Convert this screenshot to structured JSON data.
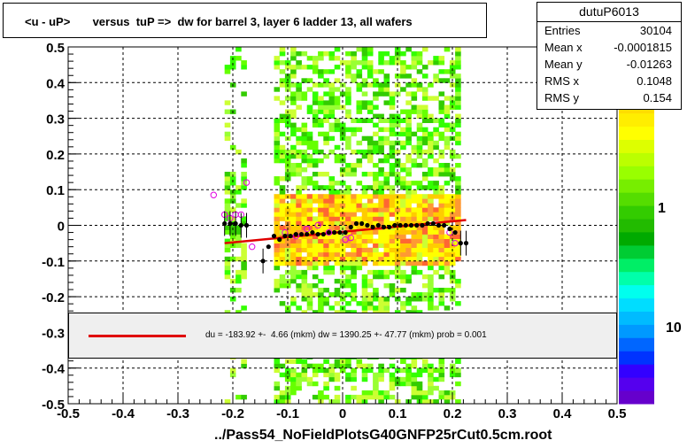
{
  "title": "<u - uP>       versus  tuP =>  dw for barrel 3, layer 6 ladder 13, all wafers",
  "x_axis_title": "../Pass54_NoFieldPlotsG40GNFP25rCut0.5cm.root",
  "stats": {
    "name": "dutuP6013",
    "rows": [
      {
        "label": "Entries",
        "value": "30104"
      },
      {
        "label": "Mean x",
        "value": "-0.0001815"
      },
      {
        "label": "Mean y",
        "value": "-0.01263"
      },
      {
        "label": "RMS x",
        "value": "0.1048"
      },
      {
        "label": "RMS y",
        "value": "0.154"
      }
    ]
  },
  "fit_text": "du = -183.92 +-  4.66 (mkm) dw = 1390.25 +- 47.77 (mkm) prob = 0.001",
  "palette_labels": [
    "10",
    "1",
    "10"
  ],
  "colors": {
    "fit": "#e00000",
    "profile": "#000000",
    "open_markers": "#e000e0"
  },
  "chart_data": {
    "type": "heatmap",
    "xlim": [
      -0.5,
      0.5
    ],
    "ylim": [
      -0.5,
      0.5
    ],
    "x_ticks": [
      -0.5,
      -0.4,
      -0.3,
      -0.2,
      -0.1,
      0,
      0.1,
      0.2,
      0.3,
      0.4,
      0.5
    ],
    "y_ticks": [
      -0.5,
      -0.4,
      -0.3,
      -0.2,
      -0.1,
      0,
      0.1,
      0.2,
      0.3,
      0.4,
      0.5
    ],
    "x_tick_labels": [
      "-0.5",
      "-0.4",
      "-0.3",
      "-0.2",
      "-0.1",
      "0",
      "0.1",
      "0.2",
      "0.3",
      "0.4",
      "0.5"
    ],
    "y_tick_labels": [
      "-0.5",
      "-0.4",
      "-0.3",
      "-0.2",
      "-0.1",
      "0",
      "0.1",
      "0.2",
      "0.3",
      "0.4",
      "0.5"
    ],
    "grid": true,
    "occupied_x_bands": [
      [
        -0.215,
        -0.18
      ],
      [
        -0.125,
        0.21
      ]
    ],
    "dense_x_range": [
      -0.125,
      0.21
    ],
    "dense_y_range": [
      -0.12,
      0.08
    ],
    "profile_points": [
      [
        -0.215,
        0.005
      ],
      [
        -0.205,
        0.005
      ],
      [
        -0.195,
        0.005
      ],
      [
        -0.185,
        0.0
      ],
      [
        -0.175,
        0.0
      ],
      [
        -0.145,
        -0.1
      ],
      [
        -0.135,
        -0.06
      ],
      [
        -0.125,
        -0.03
      ],
      [
        -0.115,
        -0.04
      ],
      [
        -0.105,
        -0.03
      ],
      [
        -0.095,
        -0.03
      ],
      [
        -0.085,
        -0.025
      ],
      [
        -0.075,
        -0.025
      ],
      [
        -0.065,
        -0.025
      ],
      [
        -0.055,
        -0.02
      ],
      [
        -0.045,
        -0.025
      ],
      [
        -0.035,
        -0.025
      ],
      [
        -0.025,
        -0.02
      ],
      [
        -0.015,
        -0.02
      ],
      [
        -0.005,
        -0.02
      ],
      [
        0.005,
        -0.02
      ],
      [
        0.015,
        -0.005
      ],
      [
        0.025,
        0.005
      ],
      [
        0.035,
        0.005
      ],
      [
        0.045,
        0.0
      ],
      [
        0.055,
        -0.005
      ],
      [
        0.065,
        0.0
      ],
      [
        0.075,
        -0.005
      ],
      [
        0.085,
        -0.005
      ],
      [
        0.095,
        0.0
      ],
      [
        0.105,
        0.0
      ],
      [
        0.115,
        0.0
      ],
      [
        0.125,
        0.0
      ],
      [
        0.135,
        0.0
      ],
      [
        0.145,
        0.0
      ],
      [
        0.155,
        0.005
      ],
      [
        0.165,
        0.005
      ],
      [
        0.175,
        0.0
      ],
      [
        0.185,
        0.0
      ],
      [
        0.195,
        -0.01
      ],
      [
        0.205,
        -0.02
      ],
      [
        0.215,
        -0.05
      ],
      [
        0.225,
        -0.05
      ]
    ],
    "open_points": [
      [
        -0.235,
        0.085
      ],
      [
        -0.215,
        0.03
      ],
      [
        -0.205,
        0.02
      ],
      [
        -0.195,
        0.03
      ],
      [
        -0.185,
        0.03
      ],
      [
        -0.175,
        0.12
      ],
      [
        -0.165,
        -0.06
      ],
      [
        -0.105,
        -0.02
      ],
      [
        -0.085,
        -0.03
      ],
      [
        -0.065,
        -0.01
      ],
      [
        -0.045,
        0.0
      ],
      [
        -0.025,
        -0.02
      ],
      [
        0.005,
        -0.04
      ],
      [
        0.015,
        -0.035
      ],
      [
        0.195,
        -0.02
      ],
      [
        0.205,
        -0.05
      ]
    ],
    "fit_line": {
      "x": [
        -0.215,
        0.225
      ],
      "y": [
        -0.05,
        0.015
      ]
    }
  }
}
